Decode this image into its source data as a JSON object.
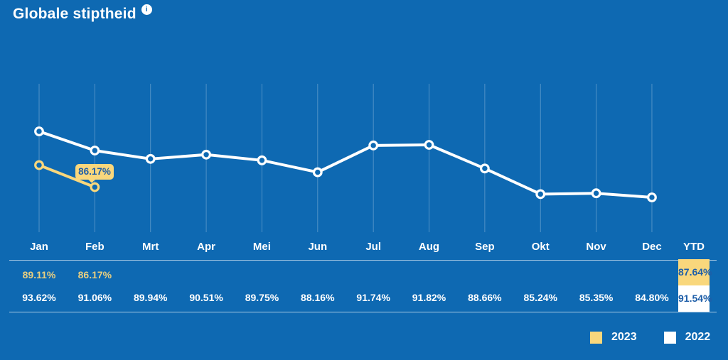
{
  "title": "Globale stiptheid",
  "tooltip": {
    "label": "86.17%",
    "series": "2023",
    "month": "Feb"
  },
  "colors": {
    "background": "#0E69B2",
    "series_2023": "#F9D77C",
    "series_2022": "#FFFFFF",
    "value_text_2023": "#E9CF80",
    "value_text_2022": "#FFFFFF",
    "highlight_text": "#1E5EA8",
    "gridline": "rgba(255,255,255,0.28)"
  },
  "chart_data": {
    "type": "line",
    "title": "Globale stiptheid",
    "categories": [
      "Jan",
      "Feb",
      "Mrt",
      "Apr",
      "Mei",
      "Jun",
      "Jul",
      "Aug",
      "Sep",
      "Okt",
      "Nov",
      "Dec"
    ],
    "series": [
      {
        "name": "2022",
        "color": "#FFFFFF",
        "values": [
          93.62,
          91.06,
          89.94,
          90.51,
          89.75,
          88.16,
          91.74,
          91.82,
          88.66,
          85.24,
          85.35,
          84.8
        ]
      },
      {
        "name": "2023",
        "color": "#F9D77C",
        "values": [
          89.11,
          86.17,
          null,
          null,
          null,
          null,
          null,
          null,
          null,
          null,
          null,
          null
        ]
      }
    ],
    "xlabel": "",
    "ylabel": "",
    "ylim": [
      80,
      100
    ],
    "grid": "vertical-only",
    "legend_position": "bottom-right",
    "annotations": [
      {
        "text": "86.17%",
        "series": "2023",
        "category": "Feb"
      }
    ]
  },
  "table": {
    "columns": [
      "Jan",
      "Feb",
      "Mrt",
      "Apr",
      "Mei",
      "Jun",
      "Jul",
      "Aug",
      "Sep",
      "Okt",
      "Nov",
      "Dec",
      "YTD"
    ],
    "rows": [
      {
        "name": "2023",
        "values": [
          "89.11%",
          "86.17%",
          "",
          "",
          "",
          "",
          "",
          "",
          "",
          "",
          "",
          "",
          "87.64%"
        ]
      },
      {
        "name": "2022",
        "values": [
          "93.62%",
          "91.06%",
          "89.94%",
          "90.51%",
          "89.75%",
          "88.16%",
          "91.74%",
          "91.82%",
          "88.66%",
          "85.24%",
          "85.35%",
          "84.80%",
          "91.54%"
        ]
      }
    ]
  },
  "legend": {
    "items": [
      {
        "label": "2023",
        "color": "#F9D77C"
      },
      {
        "label": "2022",
        "color": "#FFFFFF"
      }
    ]
  }
}
